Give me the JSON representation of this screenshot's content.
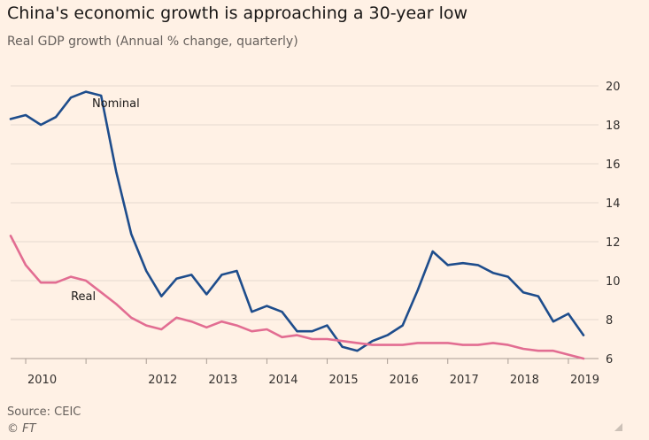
{
  "header": {
    "title": "China's economic growth is approaching a 30-year low",
    "subtitle": "Real GDP growth (Annual % change, quarterly)"
  },
  "footer": {
    "source": "Source: CEIC",
    "credit": "© FT"
  },
  "colors": {
    "background": "#fff1e5",
    "nominal": "#1e4d8c",
    "real": "#e26d92",
    "grid": "#e6d9ce"
  },
  "chart_data": {
    "type": "line",
    "title": "China's economic growth is approaching a 30-year low",
    "subtitle": "Real GDP growth (Annual % change, quarterly)",
    "ylim": [
      6,
      20
    ],
    "yticks": [
      6,
      8,
      10,
      12,
      14,
      16,
      18,
      20
    ],
    "y_axis_side": "right",
    "grid": true,
    "x_start": 2009.75,
    "x_step": 0.25,
    "xticks": [
      {
        "value": 2010,
        "label": "2010"
      },
      {
        "value": 2012,
        "label": "2012"
      },
      {
        "value": 2013,
        "label": "2013"
      },
      {
        "value": 2014,
        "label": "2014"
      },
      {
        "value": 2015,
        "label": "2015"
      },
      {
        "value": 2016,
        "label": "2016"
      },
      {
        "value": 2017,
        "label": "2017"
      },
      {
        "value": 2018,
        "label": "2018"
      },
      {
        "value": 2019,
        "label": "2019"
      }
    ],
    "series": [
      {
        "name": "Nominal",
        "color": "#1e4d8c",
        "values": [
          18.3,
          18.5,
          18.0,
          18.4,
          19.4,
          19.7,
          19.5,
          15.6,
          12.4,
          10.5,
          9.2,
          10.1,
          10.3,
          9.3,
          10.3,
          10.5,
          8.4,
          8.7,
          8.4,
          7.4,
          7.4,
          7.7,
          6.6,
          6.4,
          6.9,
          7.2,
          7.7,
          9.5,
          11.5,
          10.8,
          10.9,
          10.8,
          10.4,
          10.2,
          9.4,
          9.2,
          7.9,
          8.3,
          7.2
        ]
      },
      {
        "name": "Real",
        "color": "#e26d92",
        "values": [
          12.3,
          10.8,
          9.9,
          9.9,
          10.2,
          10.0,
          9.4,
          8.8,
          8.1,
          7.7,
          7.5,
          8.1,
          7.9,
          7.6,
          7.9,
          7.7,
          7.4,
          7.5,
          7.1,
          7.2,
          7.0,
          7.0,
          6.9,
          6.8,
          6.7,
          6.7,
          6.7,
          6.8,
          6.8,
          6.8,
          6.7,
          6.7,
          6.8,
          6.7,
          6.5,
          6.4,
          6.4,
          6.2,
          6.0
        ]
      }
    ],
    "annotations": [
      {
        "text": "Nominal",
        "x": 2011.1,
        "y": 18.9
      },
      {
        "text": "Real",
        "x": 2010.75,
        "y": 9.0
      }
    ]
  }
}
